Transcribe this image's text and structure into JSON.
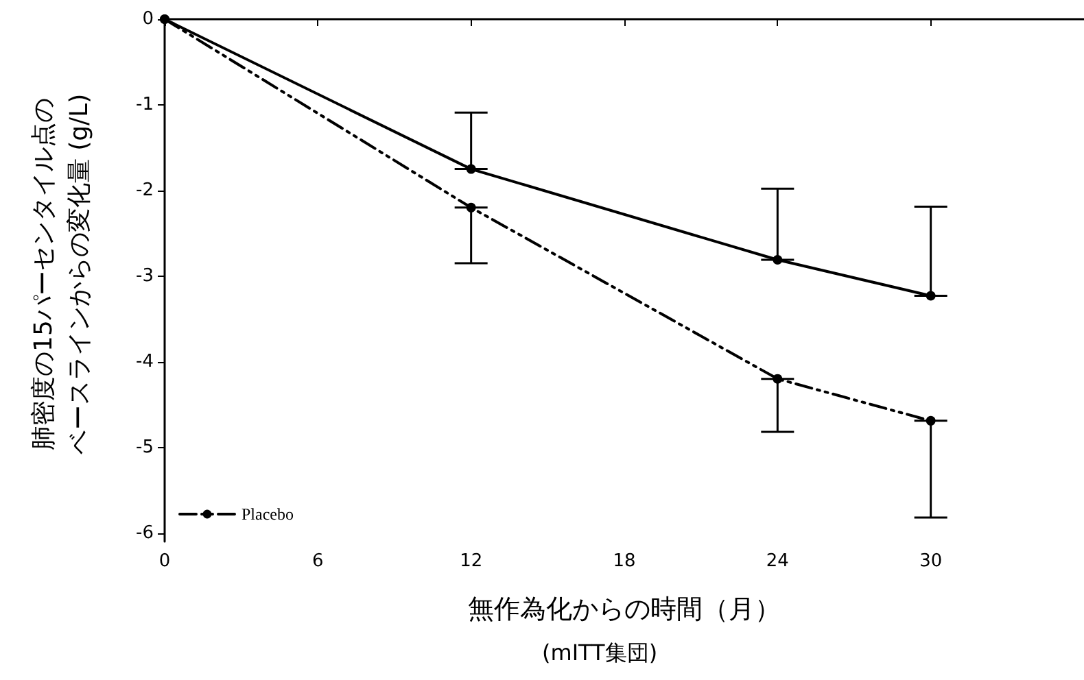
{
  "chart_data": {
    "type": "line",
    "xlabel": "無作為化からの時間（月）",
    "annotations": [
      "(mITT集団)"
    ],
    "ylabel": "肺密度の15パーセンタイル点のベースラインからの変化量 (g/L)",
    "x": [
      0,
      12,
      24,
      30
    ],
    "series": [
      {
        "color": "#000000",
        "line_style": "solid",
        "values": [
          0,
          -1.75,
          -2.81,
          -3.23
        ],
        "errors": [
          null,
          [
            -1.75,
            -1.09
          ],
          [
            -2.81,
            -1.98
          ],
          [
            -3.23,
            -2.19
          ]
        ]
      },
      {
        "name": "Placebo",
        "color": "#000000",
        "line_style": "dashed",
        "values": [
          0,
          -2.2,
          -4.2,
          -4.69
        ],
        "errors": [
          null,
          [
            -2.85,
            -2.2
          ],
          [
            -4.82,
            -4.2
          ],
          [
            -5.82,
            -4.69
          ]
        ]
      }
    ],
    "xlim": [
      0,
      36
    ],
    "xticks": [
      0,
      6,
      12,
      18,
      24,
      30
    ],
    "ylim": [
      -6.1,
      0
    ],
    "yticks": [
      -6,
      -5,
      -4,
      -3,
      -2,
      -1,
      0
    ],
    "grid": false,
    "legend": "bottom left",
    "marker": "circle"
  }
}
